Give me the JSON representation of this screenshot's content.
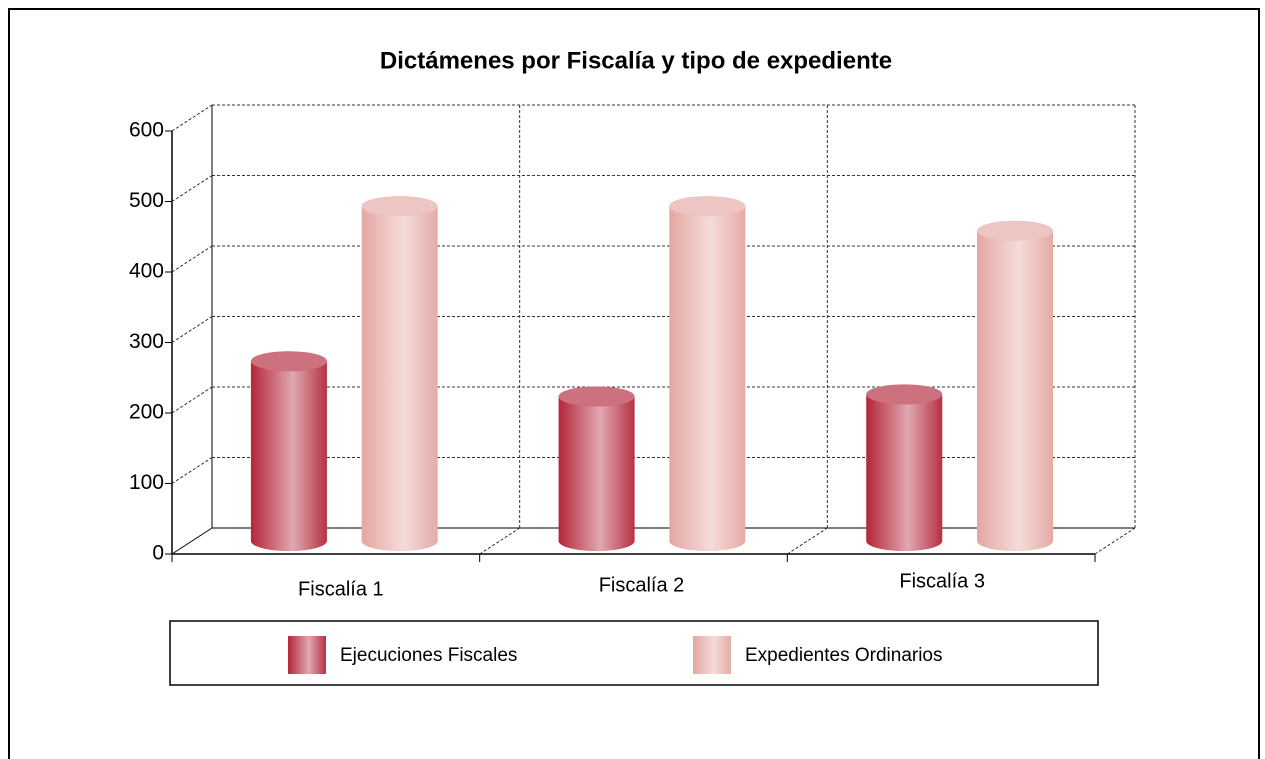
{
  "chart_data": {
    "type": "bar3d",
    "title": "Dictámenes por Fiscalía y tipo de expediente",
    "categories": [
      "Fiscalía 1",
      "Fiscalía 2",
      "Fiscalía 3"
    ],
    "series": [
      {
        "name": "Ejecuciones Fiscales",
        "color": "#b3263a",
        "values": [
          255,
          205,
          208
        ]
      },
      {
        "name": "Expedientes Ordinarios",
        "color": "#e4a7a2",
        "values": [
          475,
          475,
          440
        ]
      }
    ],
    "ylim": [
      0,
      600
    ],
    "yticks": [
      0,
      100,
      200,
      300,
      400,
      500,
      600
    ],
    "grid": true
  }
}
